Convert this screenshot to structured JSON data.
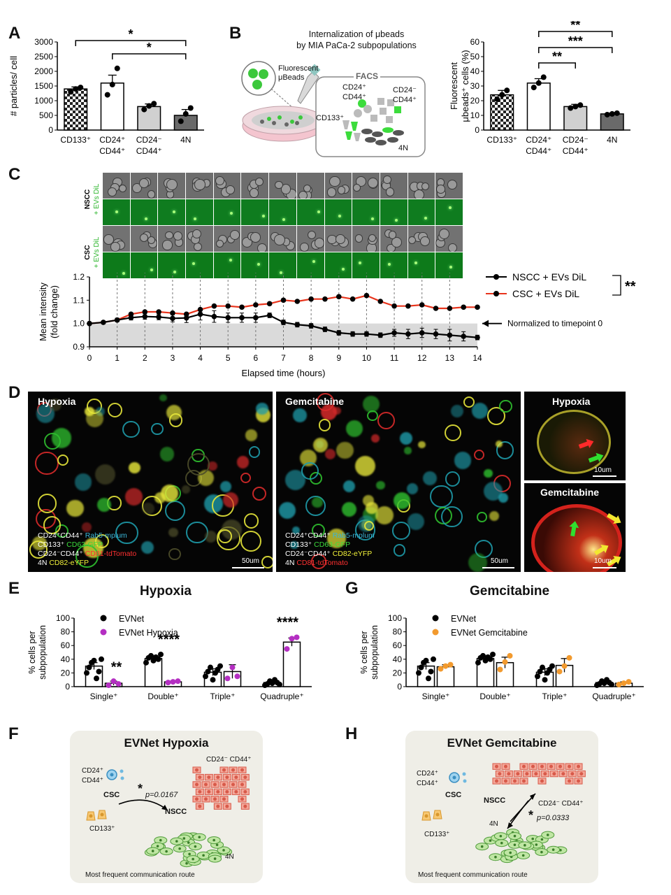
{
  "panel_labels": {
    "A": "A",
    "B": "B",
    "C": "C",
    "D": "D",
    "E": "E",
    "F": "F",
    "G": "G",
    "H": "H"
  },
  "panelA": {
    "ylabel": "# particles/ cell",
    "yticks": [
      "0",
      "500",
      "1000",
      "1500",
      "2000",
      "2500",
      "3000"
    ],
    "xlabels": [
      [
        "CD133⁺",
        ""
      ],
      [
        "CD24⁺",
        "CD44⁺"
      ],
      [
        "CD24⁻",
        "CD44⁺"
      ],
      [
        "4N",
        ""
      ]
    ],
    "sig": [
      "*",
      "*"
    ]
  },
  "panelB": {
    "title1": "Internalization of μbeads",
    "title2": "by MIA PaCa-2 subpopulations",
    "beads1": "Fluorescent",
    "beads2": "μBeads",
    "facs": "FACS",
    "pop1a": "CD24⁺",
    "pop1b": "CD44⁺",
    "pop2a": "CD24⁻",
    "pop2b": "CD44⁺",
    "pop3": "CD133⁺",
    "pop4": "4N",
    "ylabel1": "Fluorescent",
    "ylabel2": "μbeads⁺ cells  (%)",
    "yticks": [
      "0",
      "10",
      "20",
      "30",
      "40",
      "50",
      "60"
    ],
    "xlabels": [
      [
        "CD133⁺",
        ""
      ],
      [
        "CD24⁺",
        "CD44⁺"
      ],
      [
        "CD24⁻",
        "CD44⁺"
      ],
      [
        "4N",
        ""
      ]
    ],
    "sig": [
      "**",
      "***",
      "**"
    ]
  },
  "panelC": {
    "row1a": "NSCC",
    "row1b": "+ EVs DiL",
    "row2a": "CSC",
    "row2b": "+ EVs DiL",
    "ylabel1": "Mean intensity",
    "ylabel2": "(fold change)",
    "xlabel": "Elapsed time (hours)",
    "yticks": [
      "0.9",
      "1.0",
      "1.1",
      "1.2"
    ],
    "xticks": [
      "0",
      "1",
      "2",
      "3",
      "4",
      "5",
      "6",
      "7",
      "8",
      "9",
      "10",
      "11",
      "12",
      "13",
      "14"
    ],
    "legend_nscc": "NSCC + EVs DiL",
    "legend_csc": "CSC + EVs DiL",
    "sig": "**",
    "normalized": "Normalized to timepoint 0"
  },
  "panelD": {
    "hypoxia": "Hypoxia",
    "gemcitabine": "Gemcitabine",
    "scale50": "50um",
    "scale10": "10um",
    "legend_hyp": [
      {
        "a": "CD24⁺CD44⁺ ",
        "b": "Rab5-mplum",
        "c": "#3ab6d8"
      },
      {
        "a": "CD133⁺ ",
        "b": "CD63-GFP",
        "c": "#3cdc3c"
      },
      {
        "a": "CD24⁻CD44⁺ ",
        "b": "CD81-tdTomato",
        "c": "#ff3030"
      },
      {
        "a": "4N ",
        "b": "CD82-eYFP",
        "c": "#f2f23a"
      }
    ],
    "legend_gem": [
      {
        "a": "CD24⁺CD44⁺ ",
        "b": "Rab5-mplum",
        "c": "#3ab6d8"
      },
      {
        "a": "CD133⁺ ",
        "b": "CD63-GFP",
        "c": "#3cdc3c"
      },
      {
        "a": "CD24⁻CD44⁺ ",
        "b": "CD82-eYFP",
        "c": "#f2f23a"
      },
      {
        "a": "4N ",
        "b": "CD81-tdTomato",
        "c": "#ff3030"
      }
    ]
  },
  "panelE": {
    "title": "Hypoxia",
    "ylabel1": "% cells per",
    "ylabel2": "subpopulation",
    "yticks": [
      "0",
      "20",
      "40",
      "60",
      "80",
      "100"
    ],
    "legend1": "EVNet",
    "legend2": "EVNet Hypoxia",
    "xlabels": [
      "Single⁺",
      "Double⁺",
      "Triple⁺",
      "Quadruple⁺"
    ],
    "sig": [
      "**",
      "****",
      "****"
    ],
    "color2": "#b42fc2"
  },
  "panelG": {
    "title": "Gemcitabine",
    "ylabel1": "% cells per",
    "ylabel2": "subpopulation",
    "yticks": [
      "0",
      "20",
      "40",
      "60",
      "80",
      "100"
    ],
    "legend1": "EVNet",
    "legend2": "EVNet Gemcitabine",
    "xlabels": [
      "Single⁺",
      "Double⁺",
      "Triple⁺",
      "Quadruple⁺"
    ],
    "color2": "#f29a2e"
  },
  "panelF": {
    "title": "EVNet Hypoxia",
    "cd24a": "CD24⁺",
    "cd44a": "CD44⁺",
    "csc": "CSC",
    "nscc": "NSCC",
    "cd133": "CD133⁺",
    "cd24m": "CD24⁻ CD44⁺",
    "fourN": "4N",
    "star": "*",
    "p": "p=0.0167",
    "footer": "Most frequent communication route"
  },
  "panelH": {
    "title": "EVNet Gemcitabine",
    "cd24a": "CD24⁺",
    "cd44a": "CD44⁺",
    "csc": "CSC",
    "nscc": "NSCC",
    "cd133": "CD133⁺",
    "cd24m": "CD24⁻ CD44⁺",
    "fourN": "4N",
    "star": "*",
    "p": "p=0.0333",
    "footer": "Most frequent communication route"
  },
  "chart_data": [
    {
      "id": "A",
      "type": "bar",
      "categories": [
        "CD133⁺",
        "CD24⁺ CD44⁺",
        "CD24⁻ CD44⁺",
        "4N"
      ],
      "values": [
        1400,
        1600,
        800,
        500
      ],
      "errors": [
        70,
        270,
        90,
        200
      ],
      "points": [
        [
          1300,
          1400,
          1450
        ],
        [
          1200,
          1550,
          2100
        ],
        [
          700,
          820,
          900
        ],
        [
          300,
          550,
          750
        ]
      ],
      "ylabel": "# particles/ cell",
      "ylim": [
        0,
        3000
      ]
    },
    {
      "id": "B",
      "type": "bar",
      "categories": [
        "CD133⁺",
        "CD24⁺ CD44⁺",
        "CD24⁻ CD44⁺",
        "4N"
      ],
      "values": [
        24,
        32,
        16,
        11
      ],
      "errors": [
        3,
        3,
        1.5,
        0.5
      ],
      "points": [
        [
          21,
          24,
          27
        ],
        [
          29,
          32,
          36
        ],
        [
          15,
          16,
          17
        ],
        [
          10.5,
          11,
          11.5
        ]
      ],
      "ylabel": "Fluorescent μbeads⁺ cells  (%)",
      "ylim": [
        0,
        60
      ]
    },
    {
      "id": "C",
      "type": "line",
      "x": [
        0,
        0.5,
        1,
        1.5,
        2,
        2.5,
        3,
        3.5,
        4,
        4.5,
        5,
        5.5,
        6,
        6.5,
        7,
        7.5,
        8,
        8.5,
        9,
        9.5,
        10,
        10.5,
        11,
        11.5,
        12,
        12.5,
        13,
        13.5,
        14
      ],
      "series": [
        {
          "name": "NSCC + EVs DiL",
          "color": "#000000",
          "values": [
            1.0,
            1.005,
            1.015,
            1.025,
            1.03,
            1.028,
            1.022,
            1.024,
            1.04,
            1.03,
            1.025,
            1.025,
            1.025,
            1.035,
            1.005,
            0.995,
            0.99,
            0.975,
            0.96,
            0.955,
            0.955,
            0.95,
            0.96,
            0.955,
            0.96,
            0.955,
            0.95,
            0.945,
            0.94
          ],
          "errors": [
            0,
            0.005,
            0.008,
            0.01,
            0.012,
            0.012,
            0.015,
            0.02,
            0.025,
            0.025,
            0.02,
            0.02,
            0.02,
            0.01,
            0.01,
            0.01,
            0.01,
            0.01,
            0.01,
            0.01,
            0.01,
            0.01,
            0.015,
            0.02,
            0.02,
            0.02,
            0.025,
            0.02,
            0.01
          ]
        },
        {
          "name": "CSC + EVs DiL",
          "color": "#e8341c",
          "values": [
            1.0,
            1.005,
            1.015,
            1.04,
            1.05,
            1.05,
            1.045,
            1.04,
            1.06,
            1.075,
            1.075,
            1.07,
            1.08,
            1.085,
            1.1,
            1.095,
            1.105,
            1.105,
            1.115,
            1.105,
            1.12,
            1.095,
            1.075,
            1.075,
            1.08,
            1.065,
            1.065,
            1.07,
            1.07
          ]
        }
      ],
      "xlabel": "Elapsed time (hours)",
      "ylabel": "Mean intensity (fold change)",
      "ylim": [
        0.9,
        1.2
      ],
      "xlim": [
        0,
        14
      ]
    },
    {
      "id": "E",
      "type": "bar",
      "categories": [
        "Single⁺",
        "Double⁺",
        "Triple⁺",
        "Quadruple⁺"
      ],
      "series": [
        {
          "name": "EVNet",
          "values": [
            30,
            41,
            21,
            6
          ],
          "errors": [
            5,
            3,
            5,
            2
          ]
        },
        {
          "name": "EVNet Hypoxia",
          "values": [
            5,
            7,
            22,
            65
          ],
          "errors": [
            3,
            1,
            10,
            6
          ]
        }
      ],
      "points": [
        [
          [
            20,
            28,
            35,
            38,
            12,
            22,
            40
          ],
          [
            2,
            8,
            4
          ]
        ],
        [
          [
            35,
            42,
            45,
            38,
            43,
            40,
            47
          ],
          [
            6,
            7,
            8
          ]
        ],
        [
          [
            15,
            22,
            28,
            10,
            20,
            25,
            30
          ],
          [
            12,
            28,
            15
          ]
        ],
        [
          [
            2,
            4,
            8,
            5,
            10,
            6,
            3
          ],
          [
            55,
            70,
            72
          ]
        ]
      ],
      "ylabel": "% cells per subpopulation",
      "ylim": [
        0,
        100
      ]
    },
    {
      "id": "G",
      "type": "bar",
      "categories": [
        "Single⁺",
        "Double⁺",
        "Triple⁺",
        "Quadruple⁺"
      ],
      "series": [
        {
          "name": "EVNet",
          "values": [
            30,
            41,
            21,
            6
          ],
          "errors": [
            5,
            3,
            5,
            2
          ]
        },
        {
          "name": "EVNet Gemcitabine",
          "values": [
            29,
            35,
            31,
            5
          ],
          "errors": [
            3,
            8,
            10,
            2
          ]
        }
      ],
      "points": [
        [
          [
            20,
            28,
            35,
            38,
            12,
            22,
            40
          ],
          [
            26,
            30,
            32
          ]
        ],
        [
          [
            35,
            42,
            45,
            38,
            43,
            40,
            47
          ],
          [
            25,
            36,
            45
          ]
        ],
        [
          [
            15,
            22,
            28,
            10,
            20,
            25,
            30
          ],
          [
            22,
            30,
            42
          ]
        ],
        [
          [
            2,
            4,
            8,
            5,
            10,
            6,
            3
          ],
          [
            3,
            5,
            7
          ]
        ]
      ],
      "ylabel": "% cells per subpopulation",
      "ylim": [
        0,
        100
      ]
    }
  ]
}
